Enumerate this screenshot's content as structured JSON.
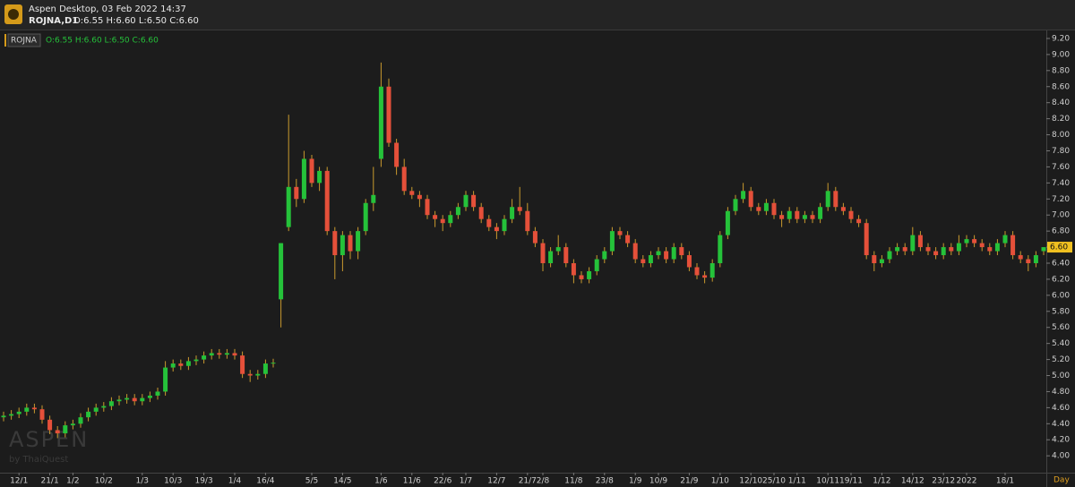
{
  "header": {
    "app_title": "Aspen Desktop, 03 Feb 2022 14:37",
    "symbol": "ROJNA,D1",
    "ohlc": "O:6.55 H:6.60 L:6.50 C:6.60"
  },
  "chart_data": {
    "type": "candlestick",
    "symbol": "ROJNA",
    "ohlc_label": "O:6.55 H:6.60 L:6.50 C:6.60",
    "categories": [
      null,
      null,
      "12/1",
      null,
      null,
      null,
      "21/1",
      null,
      null,
      "1/2",
      null,
      null,
      null,
      "10/2",
      null,
      null,
      null,
      null,
      "1/3",
      null,
      null,
      null,
      "10/3",
      null,
      null,
      null,
      "19/3",
      null,
      null,
      null,
      "1/4",
      null,
      null,
      null,
      "16/4",
      null,
      null,
      null,
      null,
      null,
      "5/5",
      null,
      null,
      null,
      "14/5",
      null,
      null,
      null,
      null,
      "1/6",
      null,
      null,
      null,
      "11/6",
      null,
      null,
      null,
      "22/6",
      null,
      null,
      "1/7",
      null,
      null,
      null,
      "12/7",
      null,
      null,
      null,
      "21/7",
      null,
      "2/8",
      null,
      null,
      null,
      "11/8",
      null,
      null,
      null,
      "23/8",
      null,
      null,
      null,
      "1/9",
      null,
      null,
      "10/9",
      null,
      null,
      null,
      "21/9",
      null,
      null,
      null,
      "1/10",
      null,
      null,
      null,
      "12/10",
      null,
      null,
      "25/10",
      null,
      null,
      "1/11",
      null,
      null,
      null,
      "10/11",
      null,
      null,
      "19/11",
      null,
      null,
      null,
      "1/12",
      null,
      null,
      null,
      "14/12",
      null,
      null,
      null,
      "23/12",
      null,
      null,
      "2022",
      null,
      null,
      null,
      null,
      "18/1",
      null,
      null,
      null,
      null,
      null
    ],
    "candles": [
      [
        4.48,
        4.55,
        4.43,
        4.5
      ],
      [
        4.5,
        4.57,
        4.45,
        4.52
      ],
      [
        4.52,
        4.6,
        4.47,
        4.55
      ],
      [
        4.55,
        4.65,
        4.5,
        4.6
      ],
      [
        4.6,
        4.65,
        4.53,
        4.58
      ],
      [
        4.58,
        4.63,
        4.4,
        4.45
      ],
      [
        4.45,
        4.5,
        4.27,
        4.32
      ],
      [
        4.32,
        4.37,
        4.22,
        4.28
      ],
      [
        4.28,
        4.43,
        4.23,
        4.38
      ],
      [
        4.38,
        4.45,
        4.33,
        4.4
      ],
      [
        4.4,
        4.53,
        4.35,
        4.48
      ],
      [
        4.48,
        4.6,
        4.43,
        4.55
      ],
      [
        4.55,
        4.65,
        4.5,
        4.6
      ],
      [
        4.6,
        4.67,
        4.55,
        4.62
      ],
      [
        4.62,
        4.73,
        4.57,
        4.68
      ],
      [
        4.68,
        4.75,
        4.63,
        4.7
      ],
      [
        4.7,
        4.77,
        4.65,
        4.72
      ],
      [
        4.72,
        4.77,
        4.63,
        4.68
      ],
      [
        4.68,
        4.77,
        4.63,
        4.72
      ],
      [
        4.72,
        4.8,
        4.67,
        4.75
      ],
      [
        4.75,
        4.85,
        4.7,
        4.8
      ],
      [
        4.8,
        5.18,
        4.75,
        5.1
      ],
      [
        5.1,
        5.2,
        5.05,
        5.15
      ],
      [
        5.15,
        5.2,
        5.07,
        5.12
      ],
      [
        5.12,
        5.23,
        5.07,
        5.18
      ],
      [
        5.18,
        5.25,
        5.13,
        5.2
      ],
      [
        5.2,
        5.3,
        5.15,
        5.25
      ],
      [
        5.25,
        5.33,
        5.2,
        5.28
      ],
      [
        5.28,
        5.33,
        5.21,
        5.26
      ],
      [
        5.26,
        5.33,
        5.21,
        5.28
      ],
      [
        5.28,
        5.33,
        5.2,
        5.25
      ],
      [
        5.25,
        5.3,
        4.97,
        5.02
      ],
      [
        5.02,
        5.07,
        4.92,
        5.0
      ],
      [
        5.0,
        5.07,
        4.95,
        5.02
      ],
      [
        5.02,
        5.2,
        4.97,
        5.15
      ],
      [
        5.15,
        5.21,
        5.1,
        5.16
      ],
      [
        5.95,
        6.65,
        5.6,
        6.65
      ],
      [
        6.85,
        8.25,
        6.8,
        7.35
      ],
      [
        7.35,
        7.45,
        7.1,
        7.2
      ],
      [
        7.2,
        7.8,
        7.15,
        7.7
      ],
      [
        7.7,
        7.75,
        7.35,
        7.4
      ],
      [
        7.4,
        7.6,
        7.3,
        7.55
      ],
      [
        7.55,
        7.6,
        6.75,
        6.8
      ],
      [
        6.8,
        6.85,
        6.2,
        6.5
      ],
      [
        6.5,
        6.8,
        6.3,
        6.75
      ],
      [
        6.75,
        6.8,
        6.45,
        6.55
      ],
      [
        6.55,
        6.85,
        6.45,
        6.8
      ],
      [
        6.8,
        7.2,
        6.75,
        7.15
      ],
      [
        7.15,
        7.6,
        7.05,
        7.25
      ],
      [
        7.7,
        8.9,
        7.6,
        8.6
      ],
      [
        8.6,
        8.7,
        7.85,
        7.9
      ],
      [
        7.9,
        7.95,
        7.5,
        7.6
      ],
      [
        7.6,
        7.7,
        7.25,
        7.3
      ],
      [
        7.3,
        7.35,
        7.2,
        7.25
      ],
      [
        7.25,
        7.3,
        7.1,
        7.2
      ],
      [
        7.2,
        7.25,
        6.95,
        7.0
      ],
      [
        7.0,
        7.05,
        6.85,
        6.95
      ],
      [
        6.95,
        7.0,
        6.8,
        6.9
      ],
      [
        6.9,
        7.05,
        6.85,
        7.0
      ],
      [
        7.0,
        7.15,
        6.95,
        7.1
      ],
      [
        7.1,
        7.3,
        7.05,
        7.25
      ],
      [
        7.25,
        7.3,
        7.05,
        7.1
      ],
      [
        7.1,
        7.15,
        6.9,
        6.95
      ],
      [
        6.95,
        7.0,
        6.8,
        6.85
      ],
      [
        6.85,
        6.9,
        6.7,
        6.8
      ],
      [
        6.8,
        7.0,
        6.75,
        6.95
      ],
      [
        6.95,
        7.2,
        6.9,
        7.1
      ],
      [
        7.1,
        7.35,
        7.0,
        7.05
      ],
      [
        7.05,
        7.15,
        6.75,
        6.8
      ],
      [
        6.8,
        6.85,
        6.6,
        6.65
      ],
      [
        6.65,
        6.7,
        6.3,
        6.4
      ],
      [
        6.4,
        6.6,
        6.35,
        6.55
      ],
      [
        6.55,
        6.75,
        6.5,
        6.6
      ],
      [
        6.6,
        6.65,
        6.35,
        6.4
      ],
      [
        6.4,
        6.45,
        6.15,
        6.25
      ],
      [
        6.25,
        6.3,
        6.15,
        6.2
      ],
      [
        6.2,
        6.35,
        6.15,
        6.3
      ],
      [
        6.3,
        6.5,
        6.25,
        6.45
      ],
      [
        6.45,
        6.6,
        6.4,
        6.55
      ],
      [
        6.55,
        6.85,
        6.5,
        6.8
      ],
      [
        6.8,
        6.85,
        6.7,
        6.75
      ],
      [
        6.75,
        6.8,
        6.6,
        6.65
      ],
      [
        6.65,
        6.7,
        6.4,
        6.45
      ],
      [
        6.45,
        6.5,
        6.35,
        6.4
      ],
      [
        6.4,
        6.55,
        6.35,
        6.5
      ],
      [
        6.5,
        6.6,
        6.45,
        6.55
      ],
      [
        6.55,
        6.6,
        6.4,
        6.45
      ],
      [
        6.45,
        6.65,
        6.4,
        6.6
      ],
      [
        6.6,
        6.65,
        6.45,
        6.5
      ],
      [
        6.5,
        6.55,
        6.3,
        6.35
      ],
      [
        6.35,
        6.4,
        6.2,
        6.25
      ],
      [
        6.25,
        6.3,
        6.15,
        6.22
      ],
      [
        6.22,
        6.45,
        6.17,
        6.4
      ],
      [
        6.4,
        6.8,
        6.35,
        6.75
      ],
      [
        6.75,
        7.1,
        6.7,
        7.05
      ],
      [
        7.05,
        7.25,
        7.0,
        7.2
      ],
      [
        7.2,
        7.4,
        7.15,
        7.3
      ],
      [
        7.3,
        7.35,
        7.05,
        7.1
      ],
      [
        7.1,
        7.15,
        7.0,
        7.05
      ],
      [
        7.05,
        7.2,
        7.0,
        7.15
      ],
      [
        7.15,
        7.2,
        6.95,
        7.0
      ],
      [
        7.0,
        7.05,
        6.85,
        6.95
      ],
      [
        6.95,
        7.1,
        6.9,
        7.05
      ],
      [
        7.05,
        7.1,
        6.9,
        6.95
      ],
      [
        6.95,
        7.05,
        6.9,
        7.0
      ],
      [
        7.0,
        7.05,
        6.9,
        6.95
      ],
      [
        6.95,
        7.15,
        6.9,
        7.1
      ],
      [
        7.1,
        7.4,
        7.05,
        7.3
      ],
      [
        7.3,
        7.35,
        7.05,
        7.1
      ],
      [
        7.1,
        7.15,
        7.0,
        7.05
      ],
      [
        7.05,
        7.1,
        6.9,
        6.95
      ],
      [
        6.95,
        7.0,
        6.85,
        6.9
      ],
      [
        6.9,
        6.95,
        6.45,
        6.5
      ],
      [
        6.5,
        6.55,
        6.3,
        6.4
      ],
      [
        6.4,
        6.5,
        6.35,
        6.45
      ],
      [
        6.45,
        6.6,
        6.4,
        6.55
      ],
      [
        6.55,
        6.65,
        6.5,
        6.6
      ],
      [
        6.6,
        6.65,
        6.5,
        6.55
      ],
      [
        6.55,
        6.85,
        6.5,
        6.75
      ],
      [
        6.75,
        6.8,
        6.55,
        6.6
      ],
      [
        6.6,
        6.65,
        6.5,
        6.55
      ],
      [
        6.55,
        6.6,
        6.45,
        6.5
      ],
      [
        6.5,
        6.65,
        6.45,
        6.6
      ],
      [
        6.6,
        6.65,
        6.5,
        6.55
      ],
      [
        6.55,
        6.75,
        6.5,
        6.65
      ],
      [
        6.65,
        6.75,
        6.6,
        6.7
      ],
      [
        6.7,
        6.75,
        6.6,
        6.65
      ],
      [
        6.65,
        6.7,
        6.55,
        6.6
      ],
      [
        6.6,
        6.65,
        6.5,
        6.55
      ],
      [
        6.55,
        6.7,
        6.5,
        6.65
      ],
      [
        6.65,
        6.8,
        6.6,
        6.75
      ],
      [
        6.75,
        6.8,
        6.45,
        6.5
      ],
      [
        6.5,
        6.55,
        6.4,
        6.45
      ],
      [
        6.45,
        6.5,
        6.3,
        6.4
      ],
      [
        6.4,
        6.55,
        6.35,
        6.5
      ],
      [
        6.55,
        6.6,
        6.5,
        6.6
      ]
    ],
    "up_color": "#25c23a",
    "down_color": "#e5503a",
    "wick_color": "#c99a2e",
    "ylim": [
      3.79,
      9.3
    ],
    "yticks": [
      {
        "value": 4,
        "label": "4.00"
      },
      {
        "value": 4.2,
        "label": "4.20"
      },
      {
        "value": 4.4,
        "label": "4.40"
      },
      {
        "value": 4.6,
        "label": "4.60"
      },
      {
        "value": 4.8,
        "label": "4.80"
      },
      {
        "value": 5,
        "label": "5.00"
      },
      {
        "value": 5.2,
        "label": "5.20"
      },
      {
        "value": 5.4,
        "label": "5.40"
      },
      {
        "value": 5.6,
        "label": "5.60"
      },
      {
        "value": 5.8,
        "label": "5.80"
      },
      {
        "value": 6,
        "label": "6.00"
      },
      {
        "value": 6.2,
        "label": "6.20"
      },
      {
        "value": 6.4,
        "label": "6.40"
      },
      {
        "value": 6.6,
        "label": "6.60"
      },
      {
        "value": 6.8,
        "label": "6.80"
      },
      {
        "value": 7,
        "label": "7.00"
      },
      {
        "value": 7.2,
        "label": "7.20"
      },
      {
        "value": 7.4,
        "label": "7.40"
      },
      {
        "value": 7.6,
        "label": "7.60"
      },
      {
        "value": 7.8,
        "label": "7.80"
      },
      {
        "value": 8,
        "label": "8.00"
      },
      {
        "value": 8.2,
        "label": "8.20"
      },
      {
        "value": 8.4,
        "label": "8.40"
      },
      {
        "value": 8.6,
        "label": "8.60"
      },
      {
        "value": 8.8,
        "label": "8.80"
      },
      {
        "value": 9,
        "label": "9.00"
      },
      {
        "value": 9.2,
        "label": "9.20"
      }
    ],
    "last_price": {
      "value": 6.6,
      "label": "6.60"
    },
    "x_unit": "Day"
  },
  "watermark": {
    "brand": "ASPEN",
    "by": "by ThaiQuest"
  }
}
